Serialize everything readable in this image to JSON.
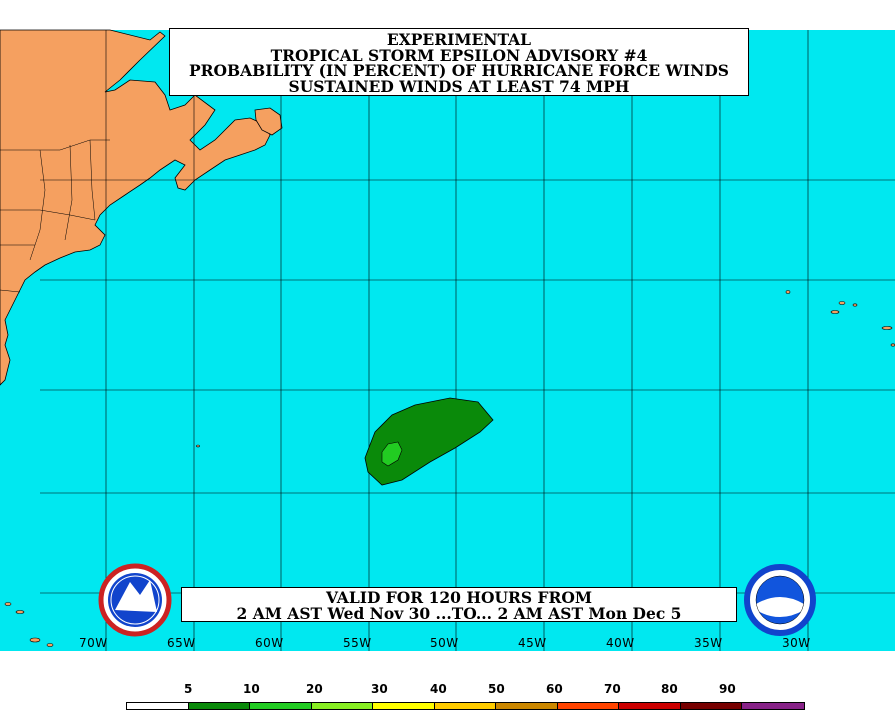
{
  "title": {
    "line1": "EXPERIMENTAL",
    "line2": "TROPICAL STORM EPSILON ADVISORY #4",
    "line3": "PROBABILITY (IN PERCENT) OF HURRICANE FORCE WINDS",
    "line4": "SUSTAINED WINDS AT LEAST 74 MPH"
  },
  "valid": {
    "line1": "VALID FOR 120 HOURS FROM",
    "line2": "2 AM AST Wed Nov 30 ...TO... 2 AM AST Mon Dec 5"
  },
  "longitude_labels": [
    "70W",
    "65W",
    "60W",
    "55W",
    "50W",
    "45W",
    "40W",
    "35W",
    "30W"
  ],
  "legend": {
    "labels": [
      "5",
      "10",
      "20",
      "30",
      "40",
      "50",
      "60",
      "70",
      "80",
      "90"
    ],
    "colors": [
      "#ffffff",
      "#0a8a0a",
      "#22cc22",
      "#88ee22",
      "#ffff00",
      "#ffcc00",
      "#cc8800",
      "#ff4400",
      "#cc0000",
      "#770000",
      "#882288"
    ]
  },
  "colors": {
    "ocean": "#00e8f0",
    "land": "#f5a060",
    "prob_10": "#0a8a0a",
    "prob_20": "#22cc22"
  },
  "logos": {
    "left": "nws-logo",
    "right": "noaa-logo"
  }
}
